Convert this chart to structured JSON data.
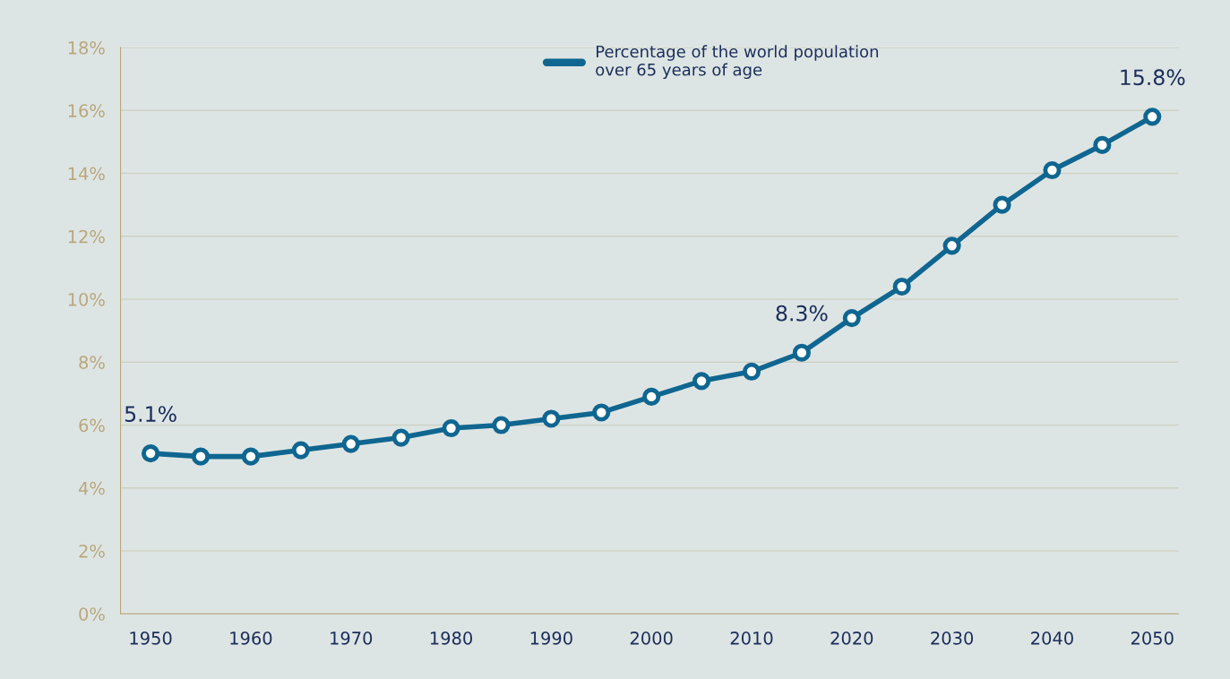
{
  "chart_data": {
    "type": "line",
    "x": [
      1950,
      1955,
      1960,
      1965,
      1970,
      1975,
      1980,
      1985,
      1990,
      1995,
      2000,
      2005,
      2010,
      2015,
      2020,
      2025,
      2030,
      2035,
      2040,
      2045,
      2050
    ],
    "series": [
      {
        "name": "Percentage of the world population\nover 65 years of age",
        "color": "#0f6690",
        "values": [
          5.1,
          5.0,
          5.0,
          5.2,
          5.4,
          5.6,
          5.9,
          6.0,
          6.2,
          6.4,
          6.9,
          7.4,
          7.7,
          8.3,
          9.4,
          10.4,
          11.7,
          13.0,
          14.1,
          14.9,
          15.8
        ]
      }
    ],
    "xlim": [
      1947,
      2052.6
    ],
    "xticks": [
      1950,
      1960,
      1970,
      1980,
      1990,
      2000,
      2010,
      2020,
      2030,
      2040,
      2050
    ],
    "ylim": [
      0,
      18
    ],
    "yticks": [
      {
        "value": 0,
        "label": "0%"
      },
      {
        "value": 2,
        "label": "2%"
      },
      {
        "value": 4,
        "label": "4%"
      },
      {
        "value": 6,
        "label": "6%"
      },
      {
        "value": 8,
        "label": "8%"
      },
      {
        "value": 10,
        "label": "10%"
      },
      {
        "value": 12,
        "label": "12%"
      },
      {
        "value": 14,
        "label": "14%"
      },
      {
        "value": 16,
        "label": "16%"
      },
      {
        "value": 18,
        "label": "18%"
      }
    ],
    "annotations": [
      {
        "text": "5.1%",
        "x": 1950,
        "y": 5.1
      },
      {
        "text": "8.3%",
        "x": 2015,
        "y": 8.3
      },
      {
        "text": "15.8%",
        "x": 2050,
        "y": 15.8
      }
    ],
    "grid": "y",
    "legend": "top",
    "marker": "circle",
    "line_style": "solid"
  }
}
